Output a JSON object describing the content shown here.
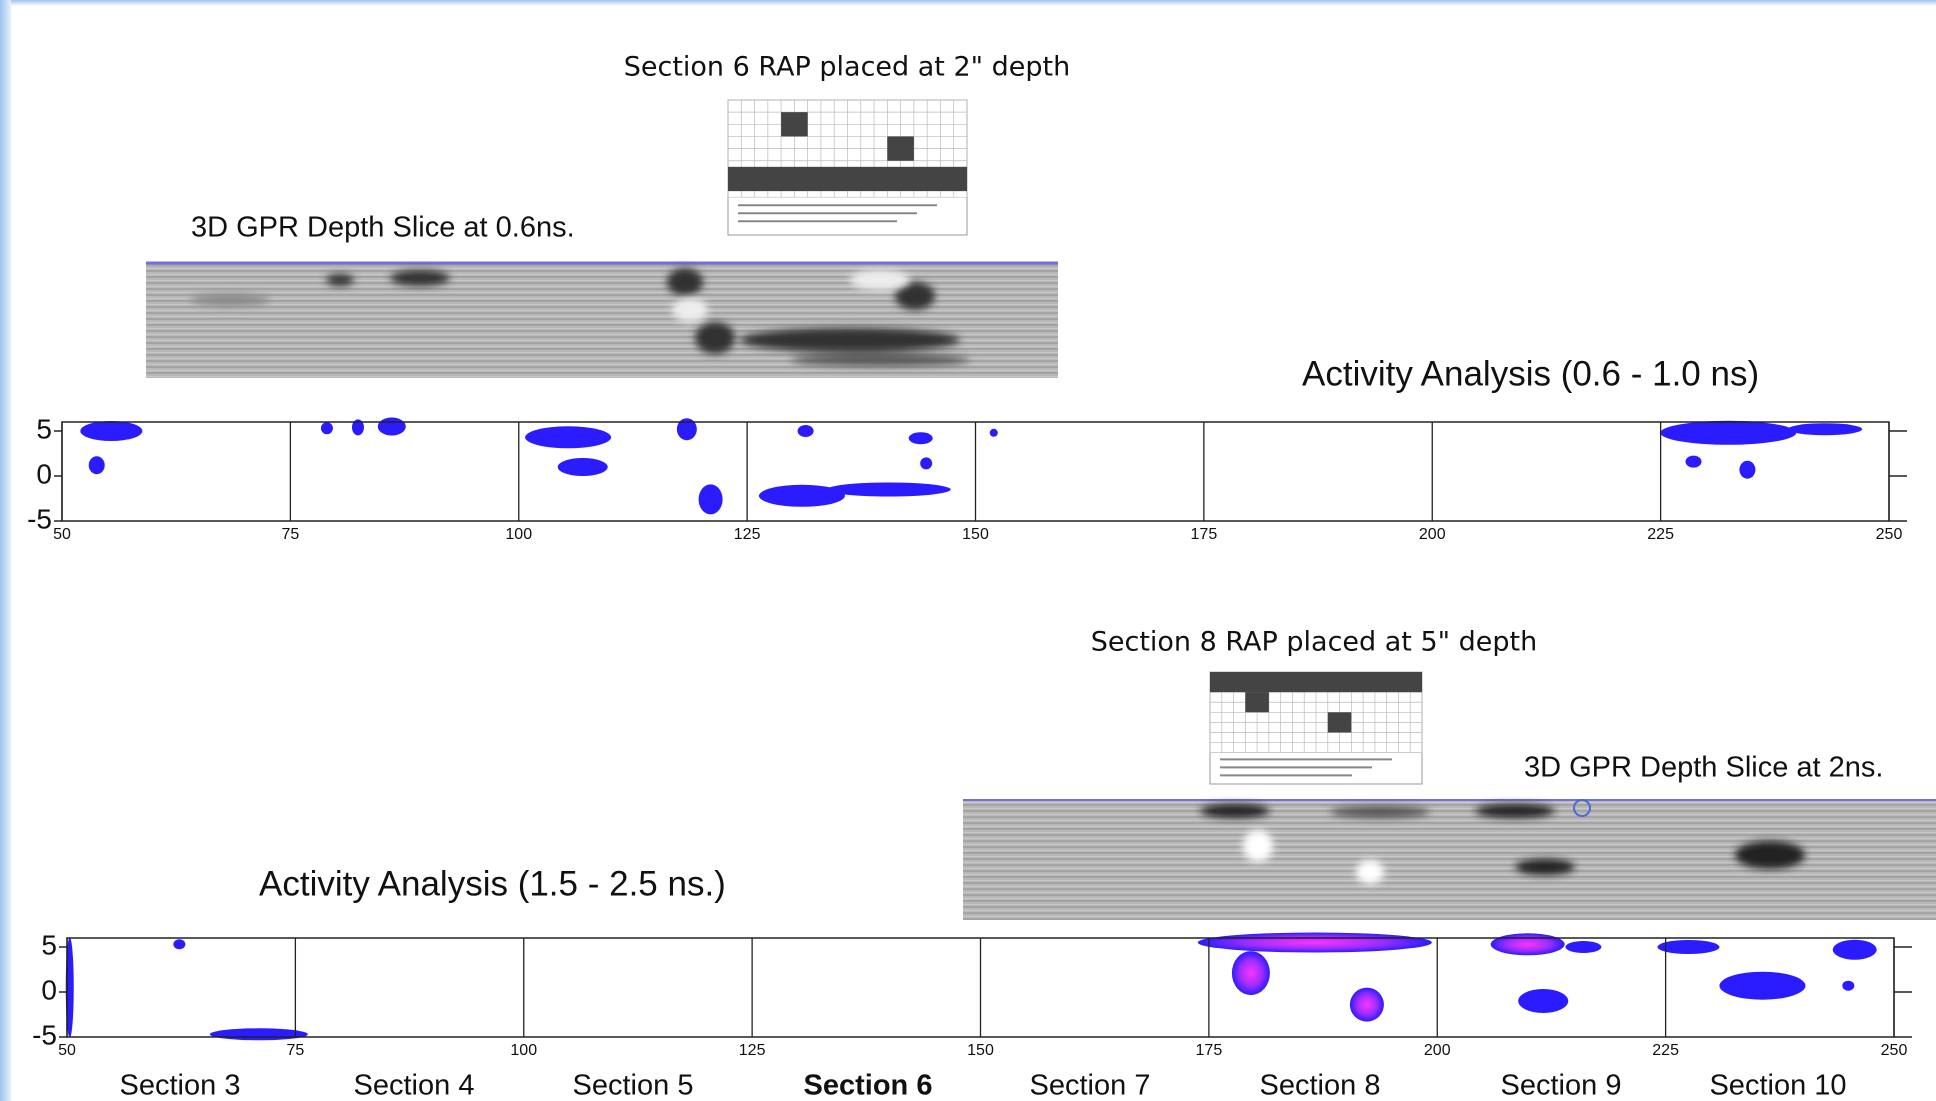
{
  "slide": {
    "top_caption": "Section 6 RAP placed at 2\" depth",
    "top_slice_caption": "3D GPR Depth Slice at 0.6ns.",
    "bottom_caption": "Section 8 RAP placed at 5\" depth",
    "bottom_slice_caption": "3D GPR Depth Slice at 2ns.",
    "panels": [
      {
        "title": "Activity Analysis (0.6 - 1.0 ns)",
        "xlim": [
          50,
          250
        ],
        "ylim": [
          -5,
          6
        ],
        "xticks": [
          50,
          75,
          100,
          125,
          150,
          175,
          200,
          225,
          250
        ],
        "yticks": [
          5,
          0,
          -5
        ]
      },
      {
        "title": "Activity Analysis (1.5 - 2.5 ns.)",
        "xlim": [
          50,
          250
        ],
        "ylim": [
          -5,
          6
        ],
        "xticks": [
          50,
          75,
          100,
          125,
          150,
          175,
          200,
          225,
          250
        ],
        "yticks": [
          5,
          0,
          -5
        ]
      }
    ],
    "sections": [
      "Section 3",
      "Section 4",
      "Section 5",
      "Section 6",
      "Section 7",
      "Section 8",
      "Section 9",
      "Section 10"
    ]
  }
}
